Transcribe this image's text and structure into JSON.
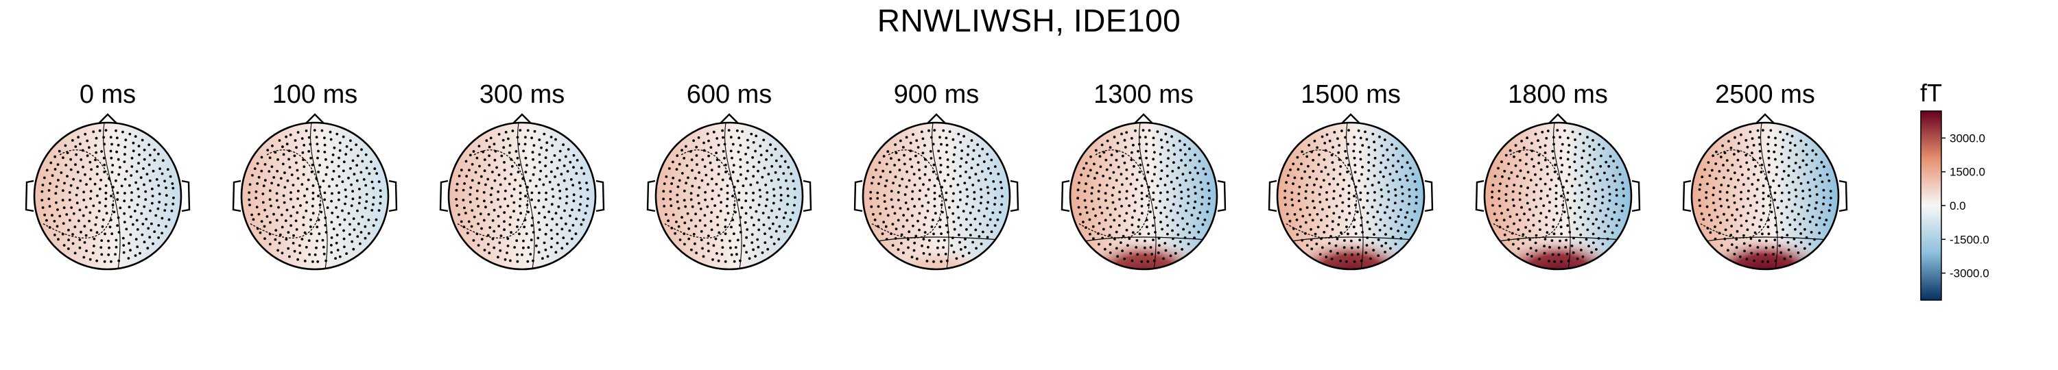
{
  "chart_data": {
    "type": "heatmap",
    "title": "RNWLIWSH, IDE100",
    "panels": [
      {
        "label": "0 ms",
        "time_ms": 0,
        "intensity": 0.08
      },
      {
        "label": "100 ms",
        "time_ms": 100,
        "intensity": 0.0
      },
      {
        "label": "300 ms",
        "time_ms": 300,
        "intensity": 0.05
      },
      {
        "label": "600 ms",
        "time_ms": 600,
        "intensity": 0.15
      },
      {
        "label": "900 ms",
        "time_ms": 900,
        "intensity": 0.25
      },
      {
        "label": "1300 ms",
        "time_ms": 1300,
        "intensity": 0.9
      },
      {
        "label": "1500 ms",
        "time_ms": 1500,
        "intensity": 0.95
      },
      {
        "label": "1800 ms",
        "time_ms": 1800,
        "intensity": 0.97
      },
      {
        "label": "2500 ms",
        "time_ms": 2500,
        "intensity": 1.0
      }
    ],
    "colorbar": {
      "unit": "fT",
      "colormap": "RdBu_r",
      "range": [
        -4200,
        4200
      ],
      "ticks": [
        3000,
        1500,
        0,
        -1500,
        -3000
      ],
      "tick_labels": [
        "3000.0",
        "1500.0",
        "0.0",
        "-1500.0",
        "-3000.0"
      ]
    },
    "colors": {
      "red_extreme": "#67001f",
      "red_mid": "#e6906f",
      "neutral": "#f7f7f7",
      "blue_mid": "#8ec0dd",
      "blue_extreme": "#053061",
      "outline": "#000000"
    }
  }
}
